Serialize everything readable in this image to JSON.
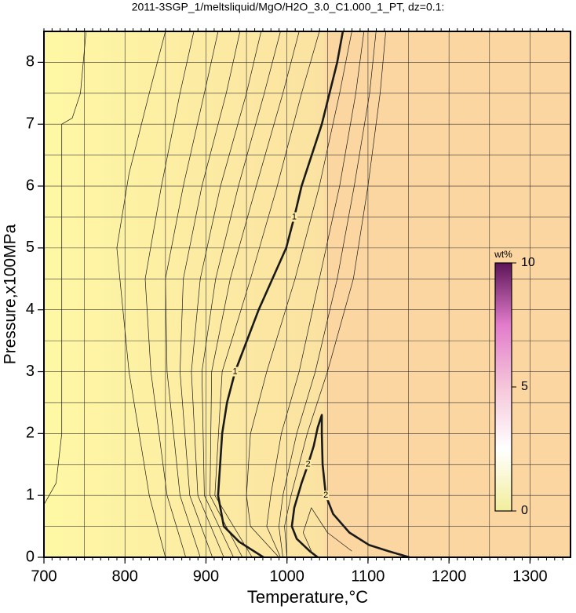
{
  "chart_data": {
    "type": "contour",
    "title": "2011-3SGP_1/meltsliquid/MgO/H2O_3.0_C1.000_1_PT, dz=0.1:",
    "x_label": "Temperature,°C",
    "y_label": "Pressure,x100MPa",
    "xlim": [
      700,
      1350
    ],
    "ylim": [
      0,
      8.5
    ],
    "xticks": [
      700,
      800,
      900,
      1000,
      1100,
      1200,
      1300
    ],
    "yticks": [
      0,
      1,
      2,
      3,
      4,
      5,
      6,
      7,
      8
    ],
    "xminorticks": [
      750,
      850,
      950,
      1050,
      1150,
      1250,
      1350
    ],
    "yminorticks": [
      0.5,
      1.5,
      2.5,
      3.5,
      4.5,
      5.5,
      6.5,
      7.5,
      8.5
    ],
    "grid": true,
    "background_colors": [
      "#fef8a4",
      "#fbe2a2",
      "#fcd6a0"
    ],
    "line_color": "#1a1a1a",
    "contours": [
      {
        "level": 0.1,
        "x": [
          700,
          715,
          722,
          722,
          735,
          745,
          752
        ],
        "y": [
          0.85,
          1.2,
          2,
          7,
          7.1,
          7.5,
          8.5
        ]
      },
      {
        "level": 0.2,
        "x": [
          850,
          830,
          805,
          790,
          805,
          830,
          850
        ],
        "y": [
          0,
          1,
          3,
          5,
          6.2,
          7.5,
          8.5
        ]
      },
      {
        "level": 0.3,
        "x": [
          875,
          852,
          832,
          825,
          845,
          868,
          885
        ],
        "y": [
          0,
          1,
          3,
          4.5,
          6,
          7.5,
          8.5
        ]
      },
      {
        "level": 0.4,
        "x": [
          893,
          868,
          852,
          850,
          872,
          898,
          915
        ],
        "y": [
          0,
          1,
          3,
          4.5,
          6,
          7.5,
          8.5
        ]
      },
      {
        "level": 0.5,
        "x": [
          908,
          880,
          868,
          872,
          895,
          925,
          942
        ],
        "y": [
          0,
          1,
          3,
          4.5,
          6,
          7.5,
          8.5
        ]
      },
      {
        "level": 0.6,
        "x": [
          922,
          890,
          882,
          893,
          918,
          950,
          968
        ],
        "y": [
          0,
          1,
          3,
          4.5,
          6,
          7.5,
          8.5
        ]
      },
      {
        "level": 0.7,
        "x": [
          934,
          898,
          895,
          912,
          940,
          972,
          992
        ],
        "y": [
          0,
          1,
          3,
          4.5,
          6,
          7.5,
          8.5
        ]
      },
      {
        "level": 0.8,
        "x": [
          945,
          905,
          907,
          930,
          962,
          995,
          1015
        ],
        "y": [
          0,
          1,
          3,
          4.5,
          6,
          7.5,
          8.5
        ]
      },
      {
        "level": 0.9,
        "x": [
          957,
          911,
          920,
          955,
          988,
          1018,
          1040
        ],
        "y": [
          0,
          1,
          3,
          4.5,
          6,
          7.5,
          8.5
        ]
      },
      {
        "level": 1,
        "x": [
          971,
          941,
          922,
          915,
          920,
          926,
          936,
          965,
          999,
          1009,
          1018,
          1043,
          1062,
          1069
        ],
        "y": [
          0,
          0.25,
          0.5,
          1,
          2,
          2.5,
          3,
          4,
          5,
          5.5,
          6,
          7,
          8,
          8.5
        ]
      },
      {
        "level": 1.2,
        "x": [
          990,
          955,
          950,
          955,
          975,
          1010,
          1040,
          1065,
          1080
        ],
        "y": [
          0,
          0.5,
          1,
          2,
          3,
          4.5,
          6,
          7.5,
          8.5
        ]
      },
      {
        "level": 1.4,
        "x": [
          992,
          975,
          980,
          993,
          1015,
          1040,
          1065,
          1085,
          1095
        ],
        "y": [
          0,
          0.5,
          1,
          2,
          3,
          4.5,
          6,
          7.5,
          8.5
        ]
      },
      {
        "level": 1.6,
        "x": [
          995,
          990,
          995,
          1012,
          1035,
          1062,
          1083,
          1102,
          1110
        ],
        "y": [
          0,
          0.5,
          1,
          2,
          3,
          4.5,
          6,
          7.5,
          8.5
        ]
      },
      {
        "level": 1.8,
        "x": [
          1000,
          997,
          1005,
          1025,
          1050,
          1082,
          1100,
          1115,
          1122
        ],
        "y": [
          0,
          0.5,
          1,
          2,
          3,
          4.5,
          6,
          7.5,
          8.5
        ]
      },
      {
        "level": 2,
        "x": [
          1151,
          1125,
          1101,
          1077,
          1057,
          1048,
          1044,
          1043,
          1043,
          1038,
          1033,
          1026,
          1018,
          1009,
          1006,
          1012,
          1028,
          1038
        ],
        "y": [
          0,
          0.1,
          0.2,
          0.4,
          0.7,
          1,
          1.5,
          2,
          2.3,
          2.1,
          1.8,
          1.5,
          1.2,
          0.8,
          0.5,
          0.3,
          0.1,
          0
        ]
      },
      {
        "level": 2.2,
        "x": [
          1030,
          1020,
          1030,
          1050,
          1080
        ],
        "y": [
          0.1,
          0.4,
          0.8,
          0.4,
          0.1
        ]
      }
    ],
    "colorbar": {
      "label": "wt%",
      "lim": [
        0,
        10
      ],
      "ticks": [
        0,
        5,
        10
      ],
      "colors": [
        "#f2ee9c",
        "#ffffff",
        "#f5c6da",
        "#e27ccb",
        "#5c1458"
      ]
    }
  }
}
